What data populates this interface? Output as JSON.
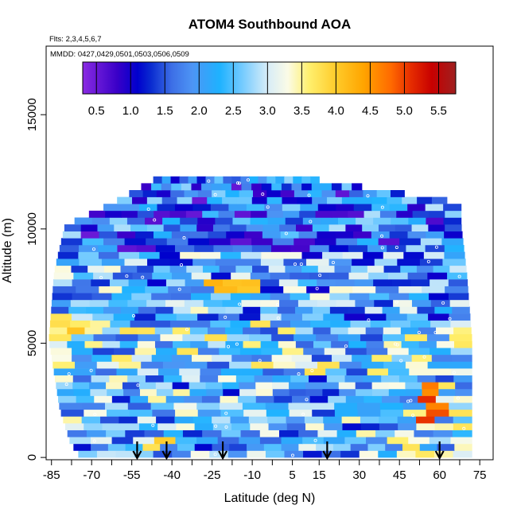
{
  "chart_data": {
    "type": "heatmap",
    "title": "ATOM4 Southbound AOA",
    "flights_note": "Flts: 2,3,4,5,6,7",
    "dates_note": "MMDD: 0427,0429,0501,0503,0506,0509",
    "xlabel": "Latitude (deg N)",
    "ylabel": "Altitude (m)",
    "xlim": [
      -87,
      80
    ],
    "ylim": [
      -100,
      18000
    ],
    "x_ticks": [
      -85,
      -70,
      -55,
      -40,
      -25,
      -10,
      5,
      15,
      30,
      45,
      60,
      75
    ],
    "x_minor_ticks": [
      -77.5,
      -62.5,
      -47.5,
      -32.5,
      -17.5,
      -2.5,
      22.5,
      37.5,
      52.5,
      67.5
    ],
    "y_ticks": [
      0,
      5000,
      10000,
      15000
    ],
    "colorbar": {
      "ticks": [
        0.5,
        1.0,
        1.5,
        2.0,
        2.5,
        3.0,
        3.5,
        4.0,
        4.5,
        5.0,
        5.5
      ],
      "range": [
        0.3,
        5.75
      ],
      "divisions": [
        0.5,
        1.0,
        1.5,
        2.0,
        2.5,
        3.0,
        3.5,
        4.0,
        4.5,
        5.0,
        5.5
      ],
      "colors": [
        "#8a2be2",
        "#3a00c8",
        "#0000cd",
        "#0a2bd0",
        "#3d6fe6",
        "#4d95f5",
        "#1eb2ff",
        "#6cc8ff",
        "#d6ecf8",
        "#fbfbe6",
        "#fff06e",
        "#ffcb2a",
        "#ffa500",
        "#ff6a00",
        "#e52b00",
        "#c70000",
        "#9e2020"
      ],
      "color_stops": [
        0.3,
        0.8,
        1.1,
        1.3,
        1.6,
        1.9,
        2.3,
        2.6,
        3.0,
        3.3,
        3.6,
        4.0,
        4.4,
        4.8,
        5.1,
        5.4,
        5.75
      ]
    },
    "altitude_ranges": [
      {
        "alt": 12000,
        "lat_min": -47,
        "lat_max": 15
      },
      {
        "alt": 11000,
        "lat_min": -62,
        "lat_max": 68
      },
      {
        "alt": 10000,
        "lat_min": -80,
        "lat_max": 68
      },
      {
        "alt": 8000,
        "lat_min": -84,
        "lat_max": 70
      },
      {
        "alt": 5000,
        "lat_min": -86,
        "lat_max": 72
      },
      {
        "alt": 2000,
        "lat_min": -82,
        "lat_max": 72
      },
      {
        "alt": 500,
        "lat_min": -78,
        "lat_max": 72
      },
      {
        "alt": 0,
        "lat_min": -75,
        "lat_max": 72
      }
    ],
    "high_aoa_regions": [
      {
        "lat_min": -25,
        "lat_max": -5,
        "alt_min": 7200,
        "alt_max": 7700,
        "aoa": 4.3
      },
      {
        "lat_min": 52,
        "lat_max": 60,
        "alt_min": 1500,
        "alt_max": 3400,
        "aoa": 4.8
      },
      {
        "lat_min": -50,
        "lat_max": -42,
        "alt_min": 400,
        "alt_max": 900,
        "aoa": 4.0
      },
      {
        "lat_min": -82,
        "lat_max": -74,
        "alt_min": 5000,
        "alt_max": 6200,
        "aoa": 3.8
      }
    ],
    "arrows_latitude": [
      -53,
      -42,
      -21,
      18,
      60
    ]
  }
}
